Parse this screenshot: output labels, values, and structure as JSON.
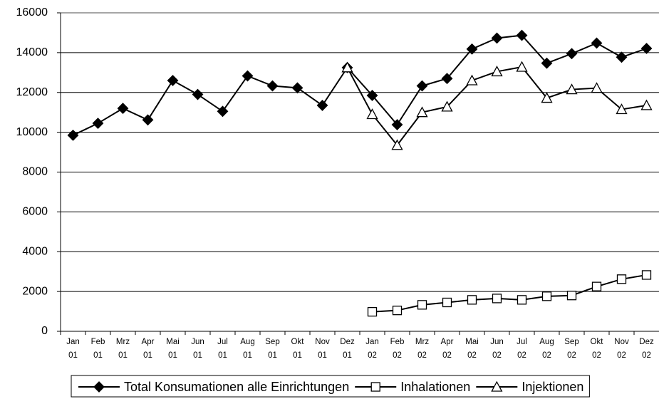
{
  "chart_data": {
    "type": "line",
    "categories": [
      "Jan 01",
      "Feb 01",
      "Mrz 01",
      "Apr 01",
      "Mai 01",
      "Jun 01",
      "Jul 01",
      "Aug 01",
      "Sep 01",
      "Okt 01",
      "Nov 01",
      "Dez 01",
      "Jan 02",
      "Feb 02",
      "Mrz 02",
      "Apr 02",
      "Mai 02",
      "Jun 02",
      "Jul 02",
      "Aug 02",
      "Sep 02",
      "Okt 02",
      "Nov 02",
      "Dez 02"
    ],
    "series": [
      {
        "name": "Total Konsumationen alle Einrichtungen",
        "color": "#000000",
        "marker": "diamond",
        "values": [
          9850,
          10450,
          11200,
          10620,
          12600,
          11900,
          11050,
          12830,
          12330,
          12230,
          11350,
          13250,
          11850,
          10380,
          12330,
          12700,
          14180,
          14730,
          14870,
          13470,
          13950,
          14480,
          13770,
          14210
        ]
      },
      {
        "name": "Inhalationen",
        "color": "#000000",
        "marker": "square",
        "values": [
          null,
          null,
          null,
          null,
          null,
          null,
          null,
          null,
          null,
          null,
          null,
          null,
          980,
          1050,
          1330,
          1450,
          1580,
          1650,
          1580,
          1760,
          1800,
          2250,
          2620,
          2830
        ]
      },
      {
        "name": "Injektionen",
        "color": "#000000",
        "marker": "triangle",
        "values": [
          null,
          null,
          null,
          null,
          null,
          null,
          null,
          null,
          null,
          null,
          null,
          13250,
          10900,
          9350,
          11000,
          11280,
          12600,
          13050,
          13280,
          11720,
          12150,
          12220,
          11150,
          11350
        ]
      }
    ],
    "ylim": [
      0,
      16000
    ],
    "yticks": [
      0,
      2000,
      4000,
      6000,
      8000,
      10000,
      12000,
      14000,
      16000
    ],
    "grid": true,
    "legend": "bottom"
  }
}
